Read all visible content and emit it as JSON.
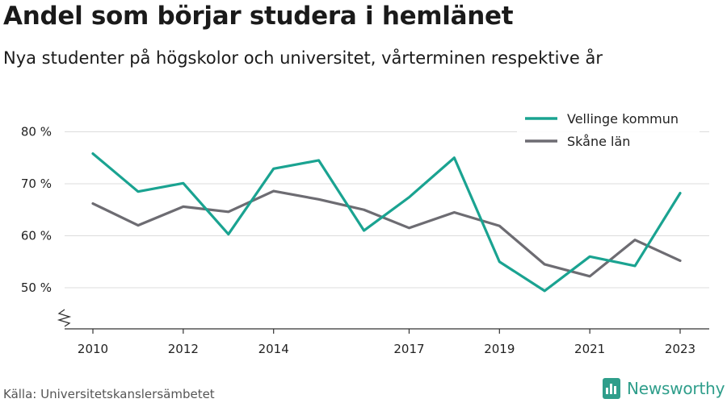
{
  "title": "Andel som börjar studera i hemlänet",
  "subtitle": "Nya studenter på högskolor och universitet, vårterminen respektive år",
  "source": "Källa: Universitetskanslersämbetet",
  "brand": {
    "name": "Newsworthy",
    "icon": "bar-chart-logo-icon",
    "color": "#2f9e8b"
  },
  "chart_data": {
    "type": "line",
    "title": "Andel som börjar studera i hemlänet",
    "x": [
      2010,
      2011,
      2012,
      2013,
      2014,
      2015,
      2016,
      2017,
      2018,
      2019,
      2020,
      2021,
      2022,
      2023
    ],
    "x_ticks": [
      2010,
      2012,
      2014,
      2017,
      2019,
      2021,
      2023
    ],
    "y_ticks": [
      50,
      60,
      70,
      80
    ],
    "y_tick_labels": [
      "50 %",
      "60 %",
      "70 %",
      "80 %"
    ],
    "ylim": [
      42,
      87
    ],
    "y_axis_broken": true,
    "grid": true,
    "legend_position": "top-right",
    "series": [
      {
        "name": "Vellinge kommun",
        "color": "#1aa391",
        "values": [
          75.8,
          68.5,
          70.1,
          60.3,
          72.9,
          74.5,
          61.0,
          67.4,
          75.0,
          55.0,
          49.4,
          56.0,
          54.2,
          68.2
        ]
      },
      {
        "name": "Skåne län",
        "color": "#6d6c72",
        "values": [
          66.2,
          62.0,
          65.6,
          64.6,
          68.6,
          67.0,
          65.0,
          61.5,
          64.5,
          61.9,
          54.5,
          52.2,
          59.2,
          55.2
        ]
      }
    ]
  }
}
